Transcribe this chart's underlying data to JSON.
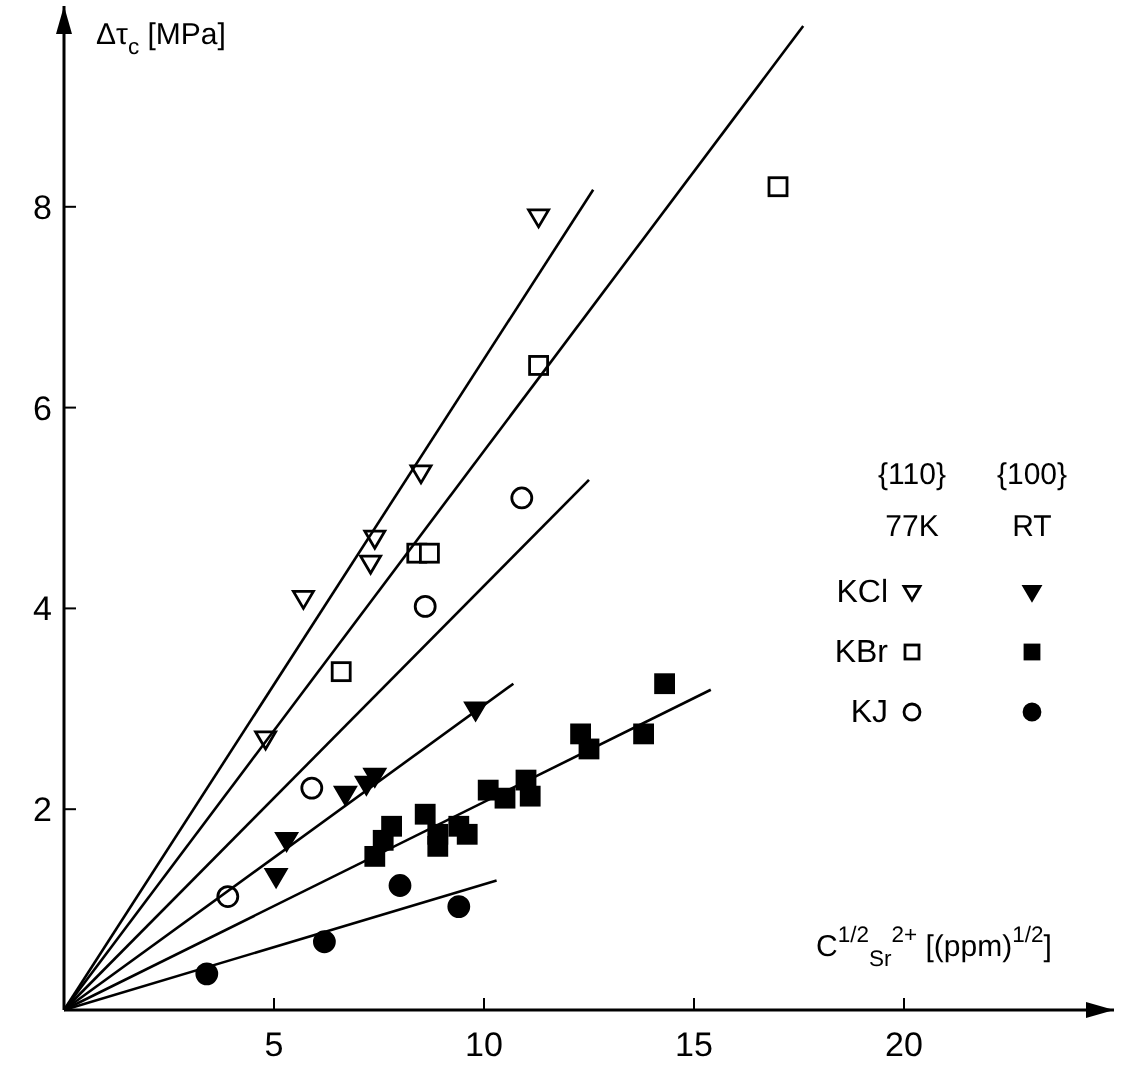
{
  "chart_data": {
    "type": "scatter",
    "xlabel": "C$^{1/2}$$_{Sr}$$^{2+}$ [(ppm)$^{1/2}$]",
    "ylabel": "Δτ$_{c}$ [MPa]",
    "xlim": [
      0,
      25
    ],
    "ylim": [
      0,
      10
    ],
    "xticks": [
      5,
      10,
      15,
      20
    ],
    "yticks": [
      2,
      4,
      6,
      8
    ],
    "grid": false,
    "legend": "right",
    "annotations": [
      "{110}",
      "77K",
      "{100}",
      "RT"
    ],
    "series": [
      {
        "name": "KCl",
        "color": "#ffffff",
        "marker": "triangle",
        "x": [
          4.8,
          5.7,
          7.3,
          7.4,
          8.5,
          11.3
        ],
        "values": [
          2.7,
          4.1,
          4.45,
          4.7,
          5.35,
          7.9
        ]
      },
      {
        "name": "KBr",
        "color": "#ffffff",
        "marker": "square",
        "x": [
          6.6,
          8.4,
          8.7,
          11.3,
          17.0
        ],
        "values": [
          3.37,
          4.55,
          4.55,
          6.42,
          8.2
        ]
      },
      {
        "name": "KJ",
        "color": "#ffffff",
        "marker": "circle",
        "x": [
          3.9,
          5.9,
          8.6,
          10.9
        ],
        "values": [
          1.13,
          2.21,
          4.02,
          5.1
        ]
      },
      {
        "color": "#000000",
        "marker": "triangle",
        "x": [
          5.05,
          5.3,
          6.7,
          7.2,
          7.4,
          9.8
        ],
        "values": [
          1.33,
          1.69,
          2.15,
          2.25,
          2.33,
          2.99
        ]
      },
      {
        "color": "#000000",
        "marker": "square",
        "x": [
          7.4,
          7.6,
          7.8,
          8.6,
          8.9,
          8.9,
          9.4,
          9.6,
          10.1,
          10.5,
          11.0,
          11.1,
          12.3,
          12.5,
          13.8,
          14.3
        ],
        "values": [
          1.53,
          1.69,
          1.83,
          1.95,
          1.75,
          1.63,
          1.83,
          1.75,
          2.19,
          2.11,
          2.29,
          2.13,
          2.75,
          2.6,
          2.75,
          3.25
        ]
      },
      {
        "color": "#000000",
        "marker": "circle",
        "x": [
          3.4,
          6.2,
          8.0,
          9.4
        ],
        "values": [
          0.36,
          0.68,
          1.24,
          1.03
        ]
      },
      {
        "type": "line",
        "color": "#000000",
        "marker": "none",
        "x": [
          0,
          12.6
        ],
        "values": [
          0,
          8.17
        ]
      },
      {
        "type": "line",
        "color": "#000000",
        "marker": "none",
        "x": [
          0,
          17.6
        ],
        "values": [
          0,
          9.8
        ]
      },
      {
        "type": "line",
        "color": "#000000",
        "marker": "none",
        "x": [
          0,
          12.5
        ],
        "values": [
          0,
          5.28
        ]
      },
      {
        "type": "line",
        "color": "#000000",
        "marker": "none",
        "x": [
          0,
          10.7
        ],
        "values": [
          0,
          3.25
        ]
      },
      {
        "type": "line",
        "color": "#000000",
        "marker": "none",
        "x": [
          0,
          15.4
        ],
        "values": [
          0,
          3.19
        ]
      },
      {
        "type": "line",
        "color": "#000000",
        "marker": "none",
        "x": [
          0,
          10.3
        ],
        "values": [
          0,
          1.29
        ]
      }
    ]
  }
}
